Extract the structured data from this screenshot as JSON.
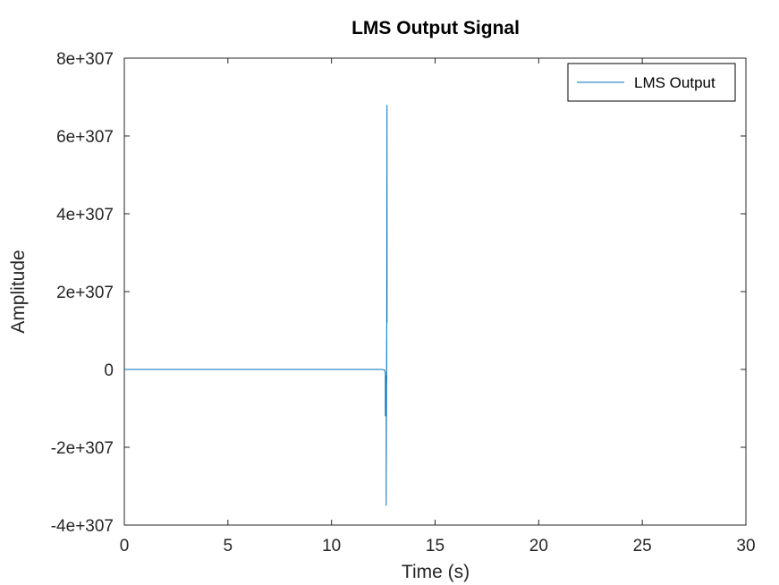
{
  "chart_data": {
    "type": "line",
    "title": "LMS Output Signal",
    "xlabel": "Time (s)",
    "ylabel": "Amplitude",
    "xlim": [
      0,
      30
    ],
    "ylim": [
      -4e+307,
      8e+307
    ],
    "x_ticks": [
      0,
      5,
      10,
      15,
      20,
      25,
      30
    ],
    "x_tick_labels": [
      "0",
      "5",
      "10",
      "15",
      "20",
      "25",
      "30"
    ],
    "y_ticks": [
      -4e+307,
      -2e+307,
      0,
      2e+307,
      4e+307,
      6e+307,
      8e+307
    ],
    "y_tick_labels": [
      "-4e+307",
      "-2e+307",
      "0",
      "2e+307",
      "4e+307",
      "6e+307",
      "8e+307"
    ],
    "grid": false,
    "legend_position": "top-right",
    "series": [
      {
        "name": "LMS Output",
        "color": "#0072bd",
        "x": [
          0,
          5,
          10,
          12.4,
          12.55,
          12.58,
          12.6,
          12.6,
          12.62,
          12.64,
          12.64,
          12.66,
          12.66,
          12.68,
          12.68
        ],
        "y": [
          0,
          0,
          0,
          0,
          -1e+305,
          -5e+305,
          -1e+306,
          -1.2e+307,
          -1.1e+307,
          -1.5e+306,
          -3.5e+307,
          8e+306,
          -3e+306,
          6.8e+307,
          1.2e+307
        ]
      }
    ]
  }
}
